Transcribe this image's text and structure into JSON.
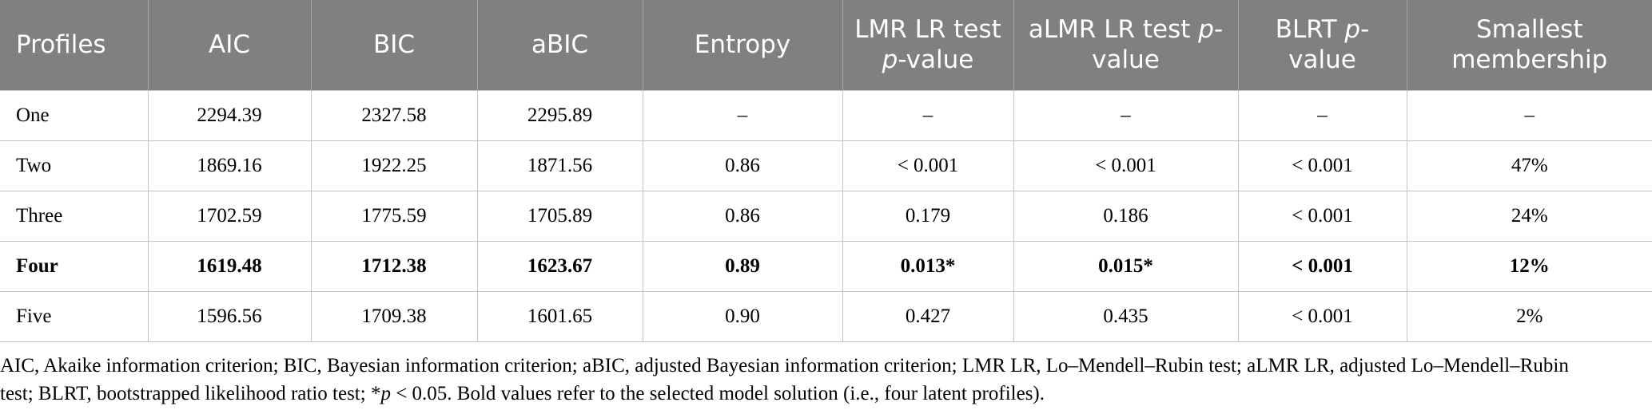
{
  "table": {
    "header": [
      [
        {
          "text": "Profiles"
        }
      ],
      [
        {
          "text": "AIC"
        }
      ],
      [
        {
          "text": "BIC"
        }
      ],
      [
        {
          "text": "aBIC"
        }
      ],
      [
        {
          "text": "Entropy"
        }
      ],
      [
        {
          "text": "LMR LR test "
        },
        {
          "text": "p",
          "italic": true
        },
        {
          "text": "-value"
        }
      ],
      [
        {
          "text": "aLMR LR test "
        },
        {
          "text": "p",
          "italic": true
        },
        {
          "text": "-value"
        }
      ],
      [
        {
          "text": "BLRT "
        },
        {
          "text": "p",
          "italic": true
        },
        {
          "text": "-value"
        }
      ],
      [
        {
          "text": "Smallest membership"
        }
      ]
    ],
    "rows": [
      [
        "One",
        "2294.39",
        "2327.58",
        "2295.89",
        "–",
        "–",
        "–",
        "–",
        "–"
      ],
      [
        "Two",
        "1869.16",
        "1922.25",
        "1871.56",
        "0.86",
        "< 0.001",
        "< 0.001",
        "< 0.001",
        "47%"
      ],
      [
        "Three",
        "1702.59",
        "1775.59",
        "1705.89",
        "0.86",
        "0.179",
        "0.186",
        "< 0.001",
        "24%"
      ],
      [
        "Four",
        "1619.48",
        "1712.38",
        "1623.67",
        "0.89",
        "0.013*",
        "0.015*",
        "< 0.001",
        "12%"
      ],
      [
        "Five",
        "1596.56",
        "1709.38",
        "1601.65",
        "0.90",
        "0.427",
        "0.435",
        "< 0.001",
        "2%"
      ]
    ],
    "bold_row": 3
  },
  "note": [
    {
      "text": "AIC, Akaike information criterion; BIC, Bayesian information criterion; aBIC, adjusted Bayesian information criterion; LMR LR, Lo–Mendell–Rubin test; aLMR LR, adjusted Lo–Mendell–Rubin test; BLRT, bootstrapped likelihood ratio test; *"
    },
    {
      "text": "p",
      "italic": true
    },
    {
      "text": " < 0.05. Bold values refer to the selected model solution (i.e., four latent profiles)."
    }
  ]
}
